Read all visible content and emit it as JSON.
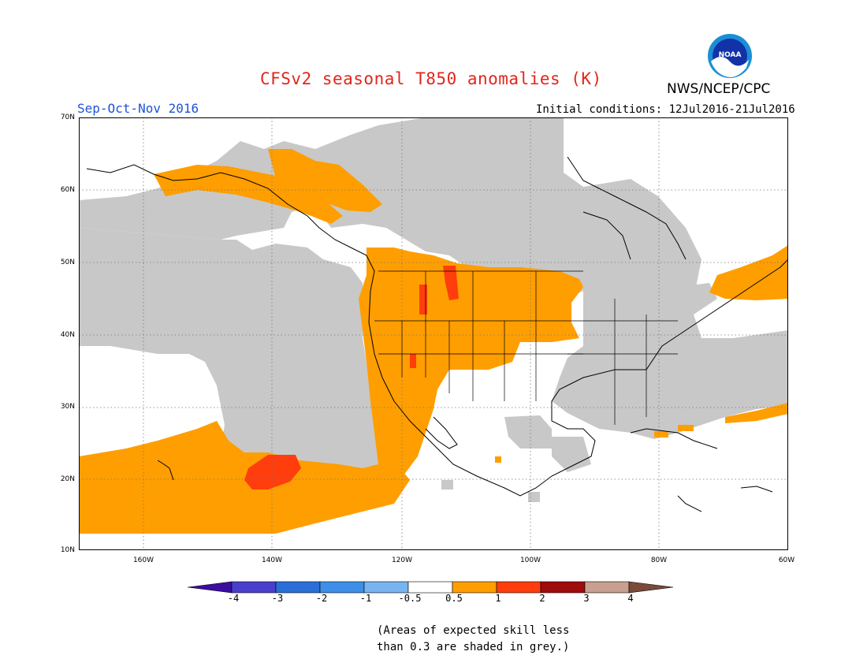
{
  "title": "CFSv2 seasonal T850 anomalies (K)",
  "organization": "NWS/NCEP/CPC",
  "logo_text": "NOAA",
  "season": "Sep-Oct-Nov 2016",
  "initial_conditions": "Initial conditions: 12Jul2016-21Jul2016",
  "lat_labels": [
    "70N",
    "60N",
    "50N",
    "40N",
    "30N",
    "20N",
    "10N"
  ],
  "lon_labels": [
    "160W",
    "140W",
    "120W",
    "100W",
    "80W",
    "60W"
  ],
  "colorbar": {
    "labels": [
      "-4",
      "-3",
      "-2",
      "-1",
      "-0.5",
      "0.5",
      "1",
      "2",
      "3",
      "4"
    ],
    "colors": [
      "#3a0ea0",
      "#4a3fcc",
      "#2a6fd8",
      "#3d8fe8",
      "#78b4f0",
      "#ffffff",
      "#ff9e00",
      "#ff3d0d",
      "#a00b0b",
      "#c9a090",
      "#7a4a3a"
    ]
  },
  "note_line1": "(Areas of expected skill less",
  "note_line2": "than 0.3 are shaded in grey.)",
  "colors": {
    "grey_low_skill": "#c8c8c8",
    "orange": "#ff9e00",
    "red": "#ff3d0d"
  }
}
